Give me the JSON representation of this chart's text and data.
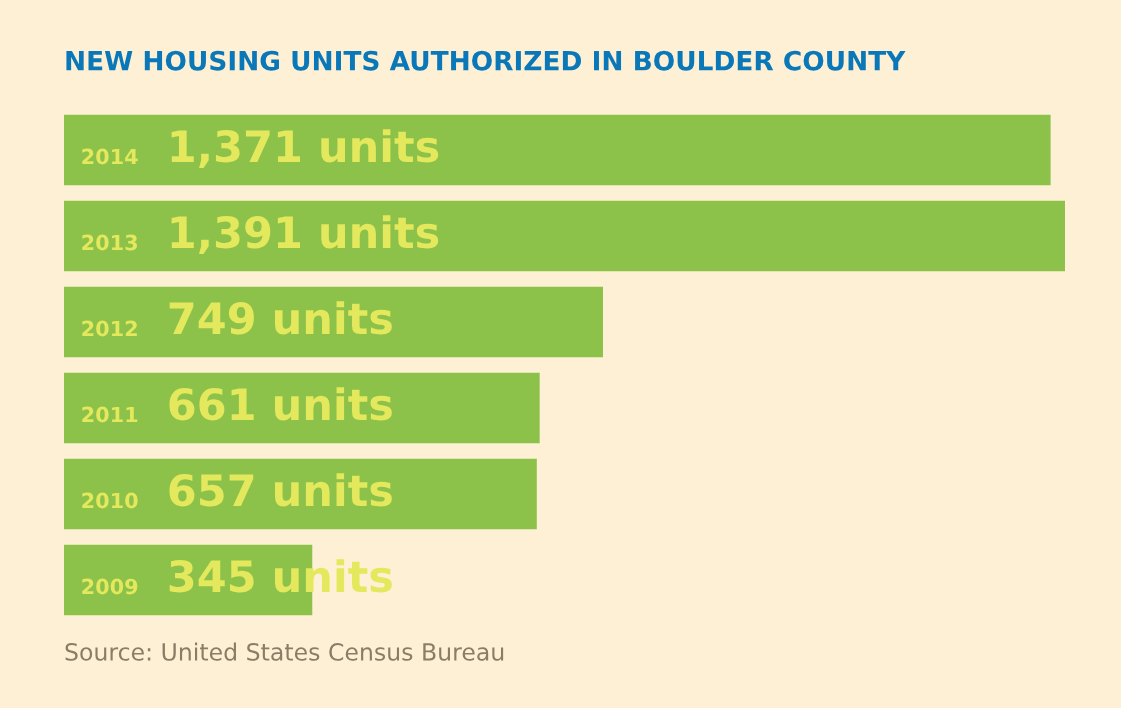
{
  "chart_data": {
    "type": "bar",
    "orientation": "horizontal",
    "title": "NEW HOUSING UNITS AUTHORIZED IN BOULDER COUNTY",
    "categories": [
      "2014",
      "2013",
      "2012",
      "2011",
      "2010",
      "2009"
    ],
    "values": [
      1371,
      1391,
      749,
      661,
      657,
      345
    ],
    "value_labels": [
      "1,371 units",
      "1,391 units",
      "749 units",
      "661 units",
      "657 units",
      "345 units"
    ],
    "color": "#8dc24a",
    "annotations": [
      "Source: United States Census Bureau"
    ]
  }
}
